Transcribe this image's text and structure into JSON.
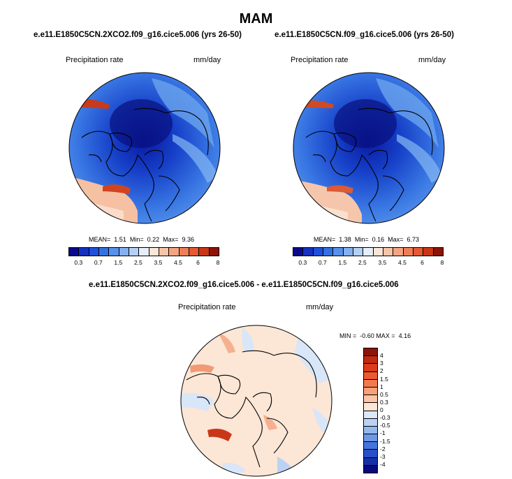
{
  "page": {
    "title": "MAM"
  },
  "left_panel": {
    "case": "e.e11.E1850C5CN.2XCO2.f09_g16.cice5.006 (yrs 26-50)",
    "variable": "Precipitation rate",
    "units": "mm/day",
    "mean_label": "MEAN=",
    "mean": "1.51",
    "min_label": "Min=",
    "min": "0.22",
    "max_label": "Max=",
    "max": "9.36"
  },
  "right_panel": {
    "case": "e.e11.E1850C5CN.f09_g16.cice5.006 (yrs 26-50)",
    "variable": "Precipitation rate",
    "units": "mm/day",
    "mean_label": "MEAN=",
    "mean": "1.38",
    "min_label": "Min=",
    "min": "0.16",
    "max_label": "Max=",
    "max": "6.73"
  },
  "diff_panel": {
    "title": "e.e11.E1850C5CN.2XCO2.f09_g16.cice5.006 - e.e11.E1850C5CN.f09_g16.cice5.006",
    "variable": "Precipitation rate",
    "units": "mm/day",
    "min_label": "MIN =",
    "min": "-0.60",
    "max_label": "MAX =",
    "max": "4.16"
  },
  "colorbar_abs": {
    "ticks": [
      "0.3",
      "0.7",
      "1.5",
      "2.5",
      "3.5",
      "4.5",
      "6",
      "8"
    ],
    "colors": [
      "#0a0a8c",
      "#1630c0",
      "#2050d8",
      "#3470e0",
      "#5890ea",
      "#84b0f0",
      "#b4d0f6",
      "#e6eefa",
      "#fce4d6",
      "#f8c4a8",
      "#f4a482",
      "#ee8058",
      "#e45a34",
      "#c83818",
      "#8c1408"
    ]
  },
  "colorbar_diff": {
    "ticks": [
      "4",
      "3",
      "2",
      "1.5",
      "1",
      "0.5",
      "0.3",
      "0",
      "-0.3",
      "-0.5",
      "-1",
      "-1.5",
      "-2",
      "-3",
      "-4"
    ],
    "colors": [
      "#8c1408",
      "#c02a10",
      "#dc3c1c",
      "#ec5a30",
      "#f47a4e",
      "#f8a078",
      "#fcc4a4",
      "#fde6d4",
      "#dce8f8",
      "#bcd2f4",
      "#94b8ee",
      "#6c98e6",
      "#4474dc",
      "#2850c8",
      "#1630a8",
      "#0a0a7c"
    ]
  }
}
